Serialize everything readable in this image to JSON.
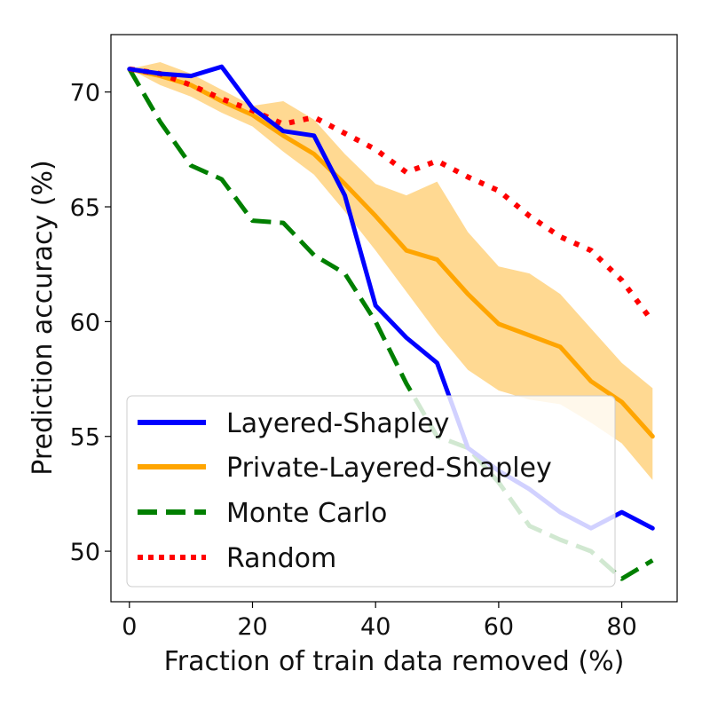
{
  "chart_data": {
    "type": "line",
    "xlabel": "Fraction of train data removed (%)",
    "ylabel": "Prediction accuracy (%)",
    "xlim": [
      -3,
      89
    ],
    "ylim": [
      47.8,
      72.5
    ],
    "xticks": [
      0,
      20,
      40,
      60,
      80
    ],
    "yticks": [
      50,
      55,
      60,
      65,
      70
    ],
    "legend_position": "lower-left",
    "series": [
      {
        "name": "Layered-Shapley",
        "color": "#0000ff",
        "style": "solid",
        "x": [
          0,
          5,
          10,
          15,
          20,
          25,
          30,
          35,
          40,
          45,
          50,
          55,
          60,
          65,
          70,
          75,
          80,
          85
        ],
        "y": [
          71.0,
          70.8,
          70.7,
          71.1,
          69.3,
          68.3,
          68.1,
          65.5,
          60.7,
          59.3,
          58.2,
          54.5,
          53.5,
          52.7,
          51.7,
          51.0,
          51.7,
          51.0
        ]
      },
      {
        "name": "Private-Layered-Shapley",
        "color": "#ffa500",
        "style": "solid",
        "band_color": "#ffd27f",
        "x": [
          0,
          5,
          10,
          15,
          20,
          25,
          30,
          35,
          40,
          45,
          50,
          55,
          60,
          65,
          70,
          75,
          80,
          85
        ],
        "y": [
          71.0,
          70.7,
          70.3,
          69.6,
          69.0,
          68.1,
          67.3,
          66.0,
          64.6,
          63.1,
          62.7,
          61.2,
          59.9,
          59.4,
          58.9,
          57.4,
          56.5,
          55.0
        ],
        "lower": [
          71.0,
          70.3,
          69.8,
          69.1,
          68.5,
          67.4,
          66.4,
          64.8,
          63.1,
          61.3,
          59.5,
          57.9,
          57.0,
          56.6,
          56.4,
          55.6,
          54.7,
          53.1
        ],
        "upper": [
          71.0,
          71.3,
          70.8,
          70.1,
          69.4,
          69.6,
          68.8,
          67.3,
          66.0,
          65.5,
          66.1,
          63.9,
          62.4,
          62.1,
          61.2,
          59.7,
          58.2,
          57.1
        ]
      },
      {
        "name": "Monte Carlo",
        "color": "#007f00",
        "style": "dashed",
        "x": [
          0,
          5,
          10,
          15,
          20,
          25,
          30,
          35,
          40,
          45,
          50,
          55,
          60,
          65,
          70,
          75,
          80,
          85
        ],
        "y": [
          71.0,
          68.7,
          66.8,
          66.2,
          64.4,
          64.3,
          62.9,
          62.1,
          60.0,
          57.3,
          55.0,
          54.5,
          53.0,
          51.1,
          50.5,
          50.0,
          48.8,
          49.6
        ]
      },
      {
        "name": "Random",
        "color": "#ff0000",
        "style": "dotted",
        "x": [
          0,
          5,
          10,
          15,
          20,
          25,
          30,
          35,
          40,
          45,
          50,
          55,
          60,
          65,
          70,
          75,
          80,
          85
        ],
        "y": [
          71.0,
          70.8,
          70.3,
          69.7,
          69.2,
          68.6,
          68.9,
          68.2,
          67.5,
          66.5,
          67.0,
          66.3,
          65.7,
          64.6,
          63.7,
          63.1,
          61.8,
          60.0
        ]
      }
    ]
  }
}
